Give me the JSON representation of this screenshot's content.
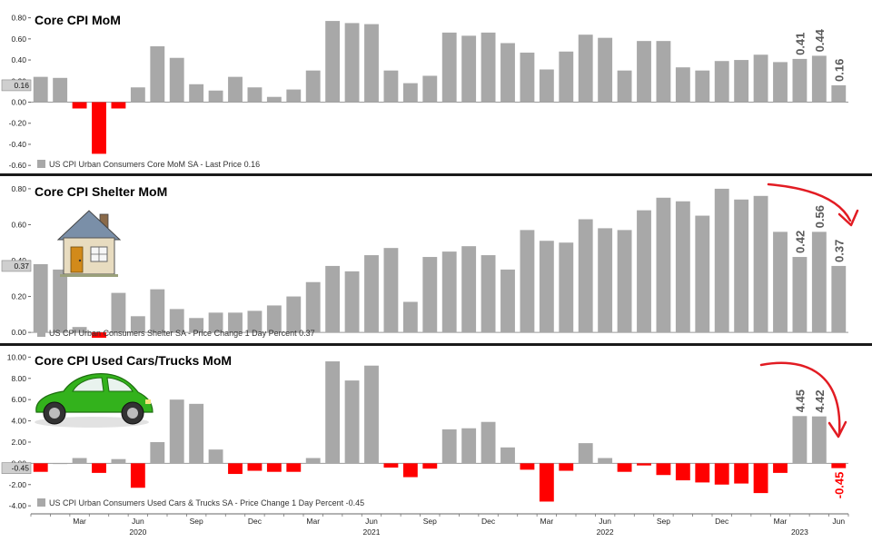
{
  "chart_data": [
    {
      "type": "bar",
      "title": "Core CPI MoM",
      "legend": "US CPI Urban Consumers Core MoM SA - Last Price 0.16",
      "last_value_label": "0.16",
      "ylim": [
        -0.65,
        0.9
      ],
      "yticks": [
        "0.80",
        "0.60",
        "0.40",
        "0.20",
        "0.00",
        "-0.20",
        "-0.40",
        "-0.60"
      ],
      "ytick_values": [
        0.8,
        0.6,
        0.4,
        0.2,
        0.0,
        -0.2,
        -0.4,
        -0.6
      ],
      "values": [
        0.24,
        0.23,
        -0.06,
        -0.49,
        -0.06,
        0.14,
        0.53,
        0.42,
        0.17,
        0.11,
        0.24,
        0.14,
        0.05,
        0.12,
        0.3,
        0.77,
        0.75,
        0.74,
        0.3,
        0.18,
        0.25,
        0.66,
        0.63,
        0.66,
        0.56,
        0.47,
        0.31,
        0.48,
        0.64,
        0.61,
        0.3,
        0.58,
        0.58,
        0.33,
        0.3,
        0.39,
        0.4,
        0.45,
        0.38,
        0.41,
        0.44,
        0.16
      ],
      "annotations": [
        {
          "index": 39,
          "text": "0.41"
        },
        {
          "index": 40,
          "text": "0.44"
        },
        {
          "index": 41,
          "text": "0.16"
        }
      ]
    },
    {
      "type": "bar",
      "title": "Core CPI Shelter MoM",
      "legend": "US CPI Urban Consumers Shelter SA - Price Change 1 Day Percent 0.37",
      "last_value_label": "0.37",
      "ylim": [
        -0.05,
        0.85
      ],
      "yticks": [
        "0.80",
        "0.60",
        "0.40",
        "0.20",
        "0.00"
      ],
      "ytick_values": [
        0.8,
        0.6,
        0.4,
        0.2,
        0.0
      ],
      "values": [
        0.38,
        0.35,
        0.03,
        -0.03,
        0.22,
        0.09,
        0.24,
        0.13,
        0.08,
        0.11,
        0.11,
        0.12,
        0.15,
        0.2,
        0.28,
        0.37,
        0.34,
        0.43,
        0.47,
        0.17,
        0.42,
        0.45,
        0.48,
        0.43,
        0.35,
        0.57,
        0.51,
        0.5,
        0.63,
        0.58,
        0.57,
        0.68,
        0.75,
        0.73,
        0.65,
        0.8,
        0.74,
        0.76,
        0.56,
        0.42,
        0.56,
        0.37
      ],
      "annotations": [
        {
          "index": 39,
          "text": "0.42"
        },
        {
          "index": 40,
          "text": "0.56"
        },
        {
          "index": 41,
          "text": "0.37"
        }
      ]
    },
    {
      "type": "bar",
      "title": "Core CPI Used Cars/Trucks MoM",
      "legend": "US CPI Urban Consumers Used Cars & Trucks SA - Price Change 1 Day Percent -0.45",
      "last_value_label": "-0.45",
      "ylim": [
        -4.5,
        10.8
      ],
      "yticks": [
        "10.00",
        "8.00",
        "6.00",
        "4.00",
        "2.00",
        "0.00",
        "-2.00",
        "-4.00"
      ],
      "ytick_values": [
        10,
        8,
        6,
        4,
        2,
        0,
        -2,
        -4
      ],
      "values": [
        -0.8,
        0.0,
        0.5,
        -0.9,
        0.4,
        -2.3,
        2.0,
        6.0,
        5.6,
        1.3,
        -1.0,
        -0.7,
        -0.8,
        -0.8,
        0.5,
        9.6,
        7.8,
        9.2,
        -0.4,
        -1.3,
        -0.5,
        3.2,
        3.3,
        3.9,
        1.5,
        -0.6,
        -3.6,
        -0.7,
        1.9,
        0.5,
        -0.8,
        -0.2,
        -1.1,
        -1.6,
        -1.8,
        -2.0,
        -1.9,
        -2.8,
        -0.9,
        4.45,
        4.42,
        -0.45
      ],
      "annotations": [
        {
          "index": 39,
          "text": "4.45"
        },
        {
          "index": 40,
          "text": "4.42"
        },
        {
          "index": 41,
          "text": "-0.45"
        }
      ]
    }
  ],
  "x_axis": {
    "month_ticks": [
      {
        "index": 2,
        "label": "Mar"
      },
      {
        "index": 5,
        "label": "Jun"
      },
      {
        "index": 8,
        "label": "Sep"
      },
      {
        "index": 11,
        "label": "Dec"
      },
      {
        "index": 14,
        "label": "Mar"
      },
      {
        "index": 17,
        "label": "Jun"
      },
      {
        "index": 20,
        "label": "Sep"
      },
      {
        "index": 23,
        "label": "Dec"
      },
      {
        "index": 26,
        "label": "Mar"
      },
      {
        "index": 29,
        "label": "Jun"
      },
      {
        "index": 32,
        "label": "Sep"
      },
      {
        "index": 35,
        "label": "Dec"
      },
      {
        "index": 38,
        "label": "Mar"
      },
      {
        "index": 41,
        "label": "Jun"
      }
    ],
    "year_ticks": [
      {
        "index": 5,
        "label": "2020"
      },
      {
        "index": 17,
        "label": "2021"
      },
      {
        "index": 29,
        "label": "2022"
      },
      {
        "index": 39,
        "label": "2023"
      }
    ]
  },
  "colors": {
    "positive": "#a8a8a8",
    "negative": "#ff0000",
    "annotation": "#5a5a5a",
    "annotation_negative": "#ff0000",
    "separator": "#1a1a1a",
    "arrow": "#e21c23"
  },
  "icons": [
    "house-icon",
    "car-icon"
  ]
}
